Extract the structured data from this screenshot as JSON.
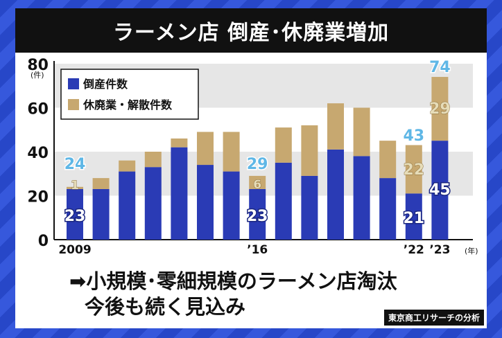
{
  "title": "ラーメン店 倒産･休廃業増加",
  "caption": {
    "arrow": "➡",
    "line1": "小規模･零細規模のラーメン店淘汰",
    "line2": "今後も続く見込み"
  },
  "source": "東京商工リサーチの分析",
  "colors": {
    "bankruptcy": "#2a3bb5",
    "closure": "#c7a870",
    "total_label": "#5fb7e6",
    "closure_label": "#e6dcb8",
    "band": "#e6e6e6"
  },
  "chart_data": {
    "type": "bar",
    "stacked": true,
    "title": "ラーメン店 倒産･休廃業増加",
    "ylabel": "(件)",
    "xlabel": "(年)",
    "ylim": [
      0,
      80
    ],
    "yticks": [
      "0",
      "20",
      "40",
      "60",
      "80"
    ],
    "categories": [
      "2009",
      "2010",
      "2011",
      "2012",
      "2013",
      "2014",
      "2015",
      "2016",
      "2017",
      "2018",
      "2019",
      "2020",
      "2021",
      "2022",
      "2023"
    ],
    "xtick_labels": [
      {
        "index": 0,
        "text": "2009"
      },
      {
        "index": 7,
        "text": "'16"
      },
      {
        "index": 13,
        "text": "'22"
      },
      {
        "index": 14,
        "text": "'23"
      }
    ],
    "series": [
      {
        "name": "倒産件数",
        "values": [
          23,
          23,
          31,
          33,
          42,
          34,
          31,
          23,
          35,
          29,
          41,
          38,
          28,
          21,
          45
        ]
      },
      {
        "name": "休廃業・解散件数",
        "values": [
          1,
          5,
          5,
          7,
          4,
          15,
          18,
          6,
          16,
          23,
          21,
          22,
          17,
          22,
          29
        ]
      }
    ],
    "labels": [
      {
        "index": 0,
        "bankruptcy": "23",
        "closure": "1",
        "total": "24"
      },
      {
        "index": 7,
        "bankruptcy": "23",
        "closure": "6",
        "total": "29"
      },
      {
        "index": 13,
        "bankruptcy": "21",
        "closure": "22",
        "total": "43"
      },
      {
        "index": 14,
        "bankruptcy": "45",
        "closure": "29",
        "total": "74"
      }
    ],
    "legend_position": "top-left"
  }
}
